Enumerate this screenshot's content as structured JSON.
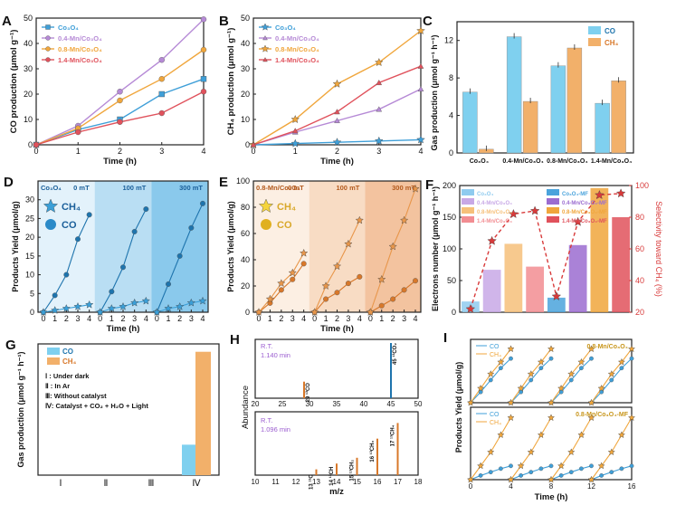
{
  "figure": {
    "panel_letters": [
      "A",
      "B",
      "C",
      "D",
      "E",
      "F",
      "G",
      "H",
      "I"
    ],
    "colors": {
      "co3o4": "#3f9fd8",
      "mn04": "#b68ad6",
      "mn08": "#f0a63c",
      "mn14": "#e0525c",
      "co_bar": "#7fd0ef",
      "ch4_bar": "#f2b06a",
      "blue_dark": "#1e74ad",
      "orange_dark": "#d8782a",
      "red_dash": "#d83a3a"
    }
  },
  "chart_data": [
    {
      "panel": "A",
      "type": "line",
      "xlabel": "Time (h)",
      "ylabel": "CO production (μmol g⁻¹)",
      "xlim": [
        0,
        4
      ],
      "ylim": [
        0,
        50
      ],
      "xticks": [
        "0",
        "1",
        "2",
        "3",
        "4"
      ],
      "yticks": [
        "0",
        "10",
        "20",
        "30",
        "40",
        "50"
      ],
      "x": [
        0,
        1,
        2,
        3,
        4
      ],
      "series": [
        {
          "name": "Co₃O₄",
          "values": [
            0,
            6,
            10,
            20,
            26
          ],
          "color": "#3f9fd8"
        },
        {
          "name": "0.4-Mn/Co₃O₄",
          "values": [
            0,
            7.5,
            21,
            33.5,
            49.5
          ],
          "color": "#b68ad6"
        },
        {
          "name": "0.8-Mn/Co₃O₄",
          "values": [
            0,
            6.5,
            17.5,
            26,
            37.5
          ],
          "color": "#f0a63c"
        },
        {
          "name": "1.4-Mn/Co₃O₄",
          "values": [
            0,
            5,
            9,
            12.5,
            21
          ],
          "color": "#e0525c"
        }
      ],
      "legend": "top-left"
    },
    {
      "panel": "B",
      "type": "line",
      "xlabel": "Time (h)",
      "ylabel": "CH₄ production (μmol g⁻¹)",
      "xlim": [
        0,
        4
      ],
      "ylim": [
        0,
        50
      ],
      "xticks": [
        "0",
        "1",
        "2",
        "3",
        "4"
      ],
      "yticks": [
        "0",
        "10",
        "20",
        "30",
        "40",
        "50"
      ],
      "x": [
        0,
        1,
        2,
        3,
        4
      ],
      "series": [
        {
          "name": "Co₃O₄",
          "values": [
            0,
            0.5,
            1,
            1.5,
            2
          ],
          "color": "#3f9fd8"
        },
        {
          "name": "0.4-Mn/Co₃O₄",
          "values": [
            0,
            5,
            9.5,
            14,
            22
          ],
          "color": "#b68ad6"
        },
        {
          "name": "0.8-Mn/Co₃O₄",
          "values": [
            0,
            10,
            24,
            32.5,
            45
          ],
          "color": "#f0a63c"
        },
        {
          "name": "1.4-Mn/Co₃O₄",
          "values": [
            0,
            5.5,
            13,
            24.5,
            31
          ],
          "color": "#e0525c"
        }
      ],
      "legend": "top-left"
    },
    {
      "panel": "C",
      "type": "bar",
      "ylabel": "Gas production (μmol g⁻¹ h⁻¹)",
      "ylim": [
        0,
        14
      ],
      "yticks": [
        "0",
        "4",
        "8",
        "12"
      ],
      "categories": [
        "Co₃O₄",
        "0.4-Mn/Co₃O₄",
        "0.8-Mn/Co₃O₄",
        "1.4-Mn/Co₃O₄"
      ],
      "series": [
        {
          "name": "CO",
          "values": [
            6.5,
            12.4,
            9.3,
            5.3
          ]
        },
        {
          "name": "CH₄",
          "values": [
            0.4,
            5.5,
            11.2,
            7.7
          ]
        }
      ],
      "legend": "top-right"
    },
    {
      "panel": "D",
      "type": "scatter",
      "xlabel": "Time (h)",
      "ylabel": "Products Yield (μmol/g)",
      "ylim": [
        0,
        35
      ],
      "yticks": [
        "0",
        "5",
        "10",
        "15",
        "20",
        "25",
        "30"
      ],
      "segment_ticks": [
        "0",
        "1",
        "2",
        "3",
        "4"
      ],
      "sample": "Co₃O₄",
      "segments": [
        "0 mT",
        "100 mT",
        "300 mT"
      ],
      "legend_labels": [
        "CH₄",
        "CO"
      ],
      "co": [
        [
          0,
          4.5,
          10,
          19.5,
          26
        ],
        [
          0,
          5.5,
          12,
          21.5,
          27.5
        ],
        [
          0,
          7.5,
          15,
          22.5,
          29
        ]
      ],
      "ch4": [
        [
          0,
          0.5,
          1,
          1.5,
          2
        ],
        [
          0,
          1,
          1.5,
          2.5,
          3
        ],
        [
          0,
          1,
          1.5,
          2.5,
          3
        ]
      ]
    },
    {
      "panel": "E",
      "type": "scatter",
      "xlabel": "Time (h)",
      "ylabel": "Products Yield (μmol/g)",
      "ylim": [
        0,
        100
      ],
      "yticks": [
        "0",
        "20",
        "40",
        "60",
        "80",
        "100"
      ],
      "segment_ticks": [
        "0",
        "1",
        "2",
        "3",
        "4"
      ],
      "sample": "0.8-Mn/Co₃O₄",
      "segments": [
        "0 mT",
        "100 mT",
        "300 mT"
      ],
      "legend_labels": [
        "CH₄",
        "CO"
      ],
      "ch4": [
        [
          0,
          10,
          22,
          30,
          45
        ],
        [
          0,
          20,
          35,
          52,
          70
        ],
        [
          0,
          25,
          50,
          70,
          94
        ]
      ],
      "co": [
        [
          0,
          7,
          17,
          25,
          37
        ],
        [
          0,
          10,
          15,
          22,
          27
        ],
        [
          0,
          5,
          10,
          17,
          24
        ]
      ]
    },
    {
      "panel": "F",
      "type": "bar",
      "ylabel": "Electrons number (μmol g⁻¹ h⁻¹)",
      "y2label": "Selectivity toward CH₄ (%)",
      "ylim": [
        0,
        200
      ],
      "yticks": [
        "0",
        "50",
        "100",
        "150",
        "200"
      ],
      "y2lim": [
        20,
        100
      ],
      "y2ticks": [
        "20",
        "40",
        "60",
        "80",
        "100"
      ],
      "legend_labels": [
        "Co₃O₄",
        "0.4-Mn/Co₃O₄",
        "0.8-Mn/Co₃O₄",
        "1.4-Mn/Co₃O₄",
        "Co₃O₄-MF",
        "0.4-Mn/Co₃O₄-MF",
        "0.8-Mn/Co₃O₄-MF",
        "1.4-Mn/Co₃O₄-MF"
      ],
      "bars": [
        17,
        67,
        108,
        72,
        23,
        106,
        196,
        150
      ],
      "selectivity": [
        22,
        65,
        82,
        84,
        30,
        77,
        94,
        95
      ]
    },
    {
      "panel": "G",
      "type": "bar",
      "ylabel": "Gas production (μmol g⁻¹ h⁻¹)",
      "categories": [
        "Ⅰ",
        "Ⅱ",
        "Ⅲ",
        "Ⅳ"
      ],
      "series": [
        {
          "name": "CO",
          "values": [
            0,
            0,
            0,
            5.8
          ]
        },
        {
          "name": "CH₄",
          "values": [
            0,
            0,
            0,
            23.5
          ]
        }
      ],
      "notes": [
        "Ⅰ : Under dark",
        "Ⅱ : In Ar",
        "Ⅲ: Without catalyst",
        "Ⅳ: Catalyst + CO₂ + H₂O + Light"
      ]
    },
    {
      "panel": "H",
      "type": "bar",
      "xlabel": "m/z",
      "ylabel": "Abundance",
      "top_xticks": [
        "20",
        "25",
        "30",
        "35",
        "40",
        "45",
        "50"
      ],
      "bottom_xticks": [
        "10",
        "11",
        "12",
        "13",
        "14",
        "15",
        "16",
        "17",
        "18"
      ],
      "top_rt": "R.T.\n1.140 min",
      "bottom_rt": "R.T.\n1.096 min",
      "top_peaks": [
        {
          "mz": 29,
          "height": 0.3,
          "label": "29 ¹³CO"
        },
        {
          "mz": 45,
          "height": 1.0,
          "label": "45 ¹³CO₂"
        }
      ],
      "bottom_peaks": [
        {
          "mz": 13,
          "height": 0.1,
          "label": "13 ¹³C"
        },
        {
          "mz": 14,
          "height": 0.2,
          "label": "14 ¹³CH"
        },
        {
          "mz": 15,
          "height": 0.3,
          "label": "15 ¹³CH₂"
        },
        {
          "mz": 16,
          "height": 0.63,
          "label": "16 ¹³CH₃"
        },
        {
          "mz": 17,
          "height": 0.9,
          "label": "17 ¹³CH₄"
        }
      ]
    },
    {
      "panel": "I",
      "type": "line",
      "xlabel": "Time (h)",
      "ylabel": "Products Yield (μmol/g)",
      "xticks": [
        "0",
        "4",
        "8",
        "12",
        "16"
      ],
      "top": {
        "sample": "0.8-Mn/Co₃O₄",
        "co": [
          0,
          9,
          19,
          29,
          37
        ],
        "ch4": [
          0,
          12,
          24,
          34,
          45
        ]
      },
      "bottom": {
        "sample": "0.8-Mn/Co₃O₄-MF",
        "co": [
          0,
          6,
          11,
          16,
          20
        ],
        "ch4": [
          0,
          20,
          40,
          65,
          90
        ]
      },
      "legend_labels": [
        "CO",
        "CH₄"
      ]
    }
  ]
}
